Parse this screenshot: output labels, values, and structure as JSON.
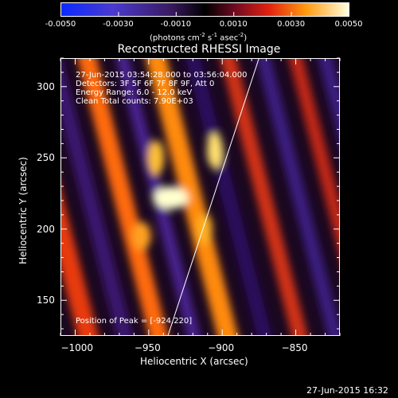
{
  "colorbar": {
    "ticks": [
      "-0.0050",
      "-0.0030",
      "-0.0010",
      "0.0010",
      "0.0030",
      "0.0050"
    ],
    "units_text": "(photons cm",
    "units_sup1": "-2",
    "units_mid": " s",
    "units_sup2": "-1",
    "units_end": " asec",
    "units_sup3": "-2",
    "units_close": ")"
  },
  "chart_data": {
    "type": "heatmap",
    "title": "Reconstructed RHESSI Image",
    "xlabel": "Heliocentric X (arcsec)",
    "ylabel": "Heliocentric Y (arcsec)",
    "xlim": [
      -1010,
      -820
    ],
    "ylim": [
      125,
      320
    ],
    "x_ticks": [
      -1000,
      -950,
      -900,
      -850
    ],
    "y_ticks": [
      150,
      200,
      250,
      300
    ],
    "color_range": [
      -0.005,
      0.005
    ],
    "colormap": "rainbow-hot",
    "limb_line": [
      [
        -937,
        125
      ],
      [
        -875,
        320
      ]
    ],
    "peak": [
      -924,
      220
    ],
    "info_lines": [
      "27-Jun-2015 03:54:28.000 to 03:56:04.000",
      "Detectors: 3F 5F 6F 7F 8F 9F, Att 0",
      "Energy Range: 6.0 - 12.0 keV",
      "Clean     Total counts: 7.90E+03"
    ],
    "peak_label": "Position of Peak = [-924,220]"
  },
  "timestamp": "27-Jun-2015 16:32"
}
